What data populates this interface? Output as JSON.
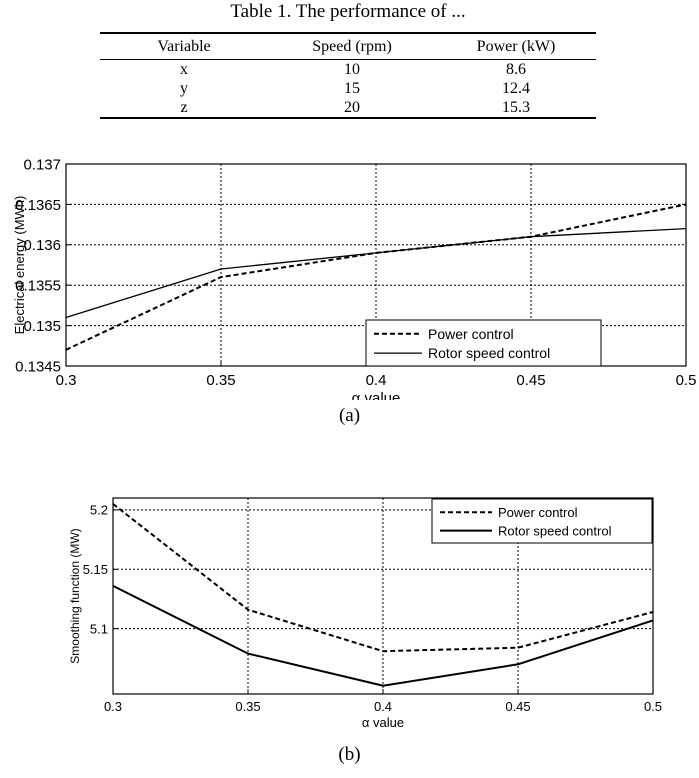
{
  "table": {
    "caption": "Table 1. The performance of ...",
    "columns": [
      "Variable",
      "Speed (rpm)",
      "Power (kW)"
    ],
    "rows": [
      [
        "x",
        "10",
        "8.6"
      ],
      [
        "y",
        "15",
        "12.4"
      ],
      [
        "z",
        "20",
        "15.3"
      ]
    ]
  },
  "chart_data": [
    {
      "type": "line",
      "caption": "(a)",
      "xlabel": "α value",
      "ylabel": "Electrical energy (MWh)",
      "xlim": [
        0.3,
        0.5
      ],
      "ylim": [
        0.1345,
        0.137
      ],
      "xticks": [
        0.3,
        0.35,
        0.4,
        0.45,
        0.5
      ],
      "xtick_labels": [
        "0.3",
        "0.35",
        "0.4",
        "0.45",
        "0.5"
      ],
      "yticks": [
        0.1345,
        0.135,
        0.1355,
        0.136,
        0.1365,
        0.137
      ],
      "ytick_labels": [
        "0.1345",
        "0.135",
        "0.1355",
        "0.136",
        "0.1365",
        "0.137"
      ],
      "grid": true,
      "legend_position": "lower-right",
      "x": [
        0.3,
        0.35,
        0.4,
        0.45,
        0.5
      ],
      "series": [
        {
          "name": "Power control",
          "style": "dashed",
          "values": [
            0.1347,
            0.1356,
            0.1359,
            0.1361,
            0.1365
          ]
        },
        {
          "name": "Rotor speed control",
          "style": "solid",
          "values": [
            0.1351,
            0.1357,
            0.1359,
            0.1361,
            0.1362
          ]
        }
      ]
    },
    {
      "type": "line",
      "caption": "(b)",
      "xlabel": "α value",
      "ylabel": "Smoothing function (MW)",
      "xlim": [
        0.3,
        0.5
      ],
      "ylim": [
        5.045,
        5.21
      ],
      "xticks": [
        0.3,
        0.35,
        0.4,
        0.45,
        0.5
      ],
      "xtick_labels": [
        "0.3",
        "0.35",
        "0.4",
        "0.45",
        "0.5"
      ],
      "yticks": [
        5.1,
        5.15,
        5.2
      ],
      "ytick_labels": [
        "5.1",
        "5.15",
        "5.2"
      ],
      "grid": true,
      "legend_position": "top-right",
      "x": [
        0.3,
        0.35,
        0.4,
        0.45,
        0.5
      ],
      "series": [
        {
          "name": "Power control",
          "style": "dashed",
          "values": [
            5.205,
            5.116,
            5.081,
            5.084,
            5.114
          ]
        },
        {
          "name": "Rotor speed control",
          "style": "solid",
          "values": [
            5.136,
            5.079,
            5.052,
            5.07,
            5.107
          ]
        }
      ]
    }
  ]
}
